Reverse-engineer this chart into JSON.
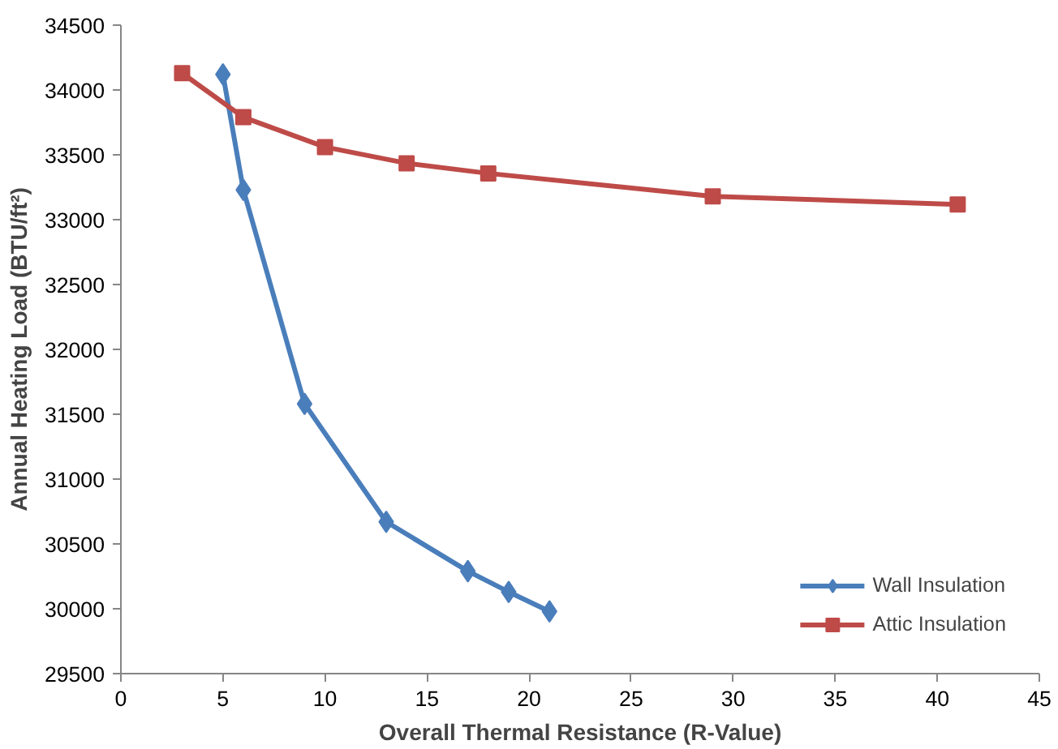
{
  "chart_data": {
    "type": "line",
    "xlabel": "Overall Thermal Resistance (R-Value)",
    "ylabel": "Annual Heating Load (BTU/ft²)",
    "xlim": [
      0,
      45
    ],
    "xticks": [
      0,
      5,
      10,
      15,
      20,
      25,
      30,
      35,
      40,
      45
    ],
    "ylim": [
      29500,
      34500
    ],
    "yticks": [
      29500,
      30000,
      30500,
      31000,
      31500,
      32000,
      32500,
      33000,
      33500,
      34000,
      34500
    ],
    "grid": false,
    "legend": "bottom right",
    "line_style": "solid",
    "series": [
      {
        "name": "Wall Insulation",
        "color": "#4a7ebb",
        "marker": "diamond",
        "x": [
          5,
          6,
          9,
          13,
          17,
          19,
          21
        ],
        "values": [
          34120,
          33230,
          31580,
          30670,
          30290,
          30130,
          29980
        ]
      },
      {
        "name": "Attic Insulation",
        "color": "#be4b48",
        "marker": "square",
        "x": [
          3,
          6,
          10,
          14,
          18,
          29,
          41
        ],
        "values": [
          34130,
          33790,
          33560,
          33435,
          33357,
          33180,
          33117
        ]
      }
    ]
  }
}
